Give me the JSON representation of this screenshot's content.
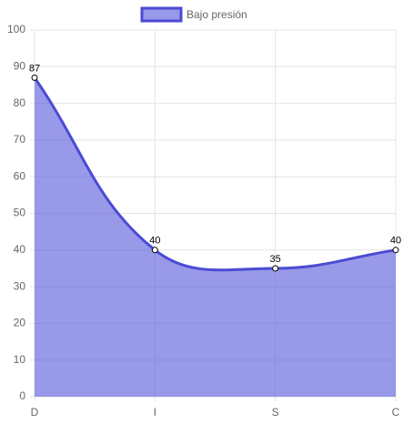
{
  "chart_data": {
    "type": "area",
    "categories": [
      "D",
      "I",
      "S",
      "C"
    ],
    "series": [
      {
        "name": "Bajo presión",
        "color": "#4b4bd4",
        "fill": "rgba(90,90,220,0.62)",
        "values": [
          87,
          40,
          35,
          40
        ]
      }
    ],
    "ylim": [
      0,
      100
    ],
    "yticks": [
      0,
      10,
      20,
      30,
      40,
      50,
      60,
      70,
      80,
      90,
      100
    ],
    "grid": true,
    "legend": "top"
  }
}
